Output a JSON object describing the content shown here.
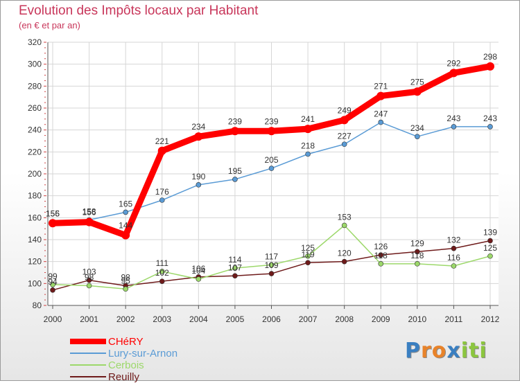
{
  "title": "Evolution des Impôts locaux par Habitant",
  "subtitle": "(en € et par an)",
  "logo": {
    "letters": [
      "P",
      "r",
      "o",
      "x",
      "i",
      "t",
      "i"
    ],
    "colors": [
      "#3a7fc1",
      "#e8832a",
      "#e8832a",
      "#3a7fc1",
      "#8cc63f",
      "#8cc63f",
      "#8cc63f"
    ]
  },
  "chart_data": {
    "type": "line",
    "title": "Evolution des Impôts locaux par Habitant",
    "subtitle": "(en € et par an)",
    "x": [
      "2000",
      "2001",
      "2002",
      "2003",
      "2004",
      "2005",
      "2006",
      "2007",
      "2008",
      "2009",
      "2010",
      "2011",
      "2012"
    ],
    "ylim": [
      80,
      320
    ],
    "yticks": [
      80,
      100,
      120,
      140,
      160,
      180,
      200,
      220,
      240,
      260,
      280,
      300,
      320
    ],
    "grid": true,
    "legend_position": "bottom-left",
    "series": [
      {
        "name": "CHéRY",
        "values": [
          155,
          156,
          144,
          221,
          234,
          239,
          239,
          241,
          249,
          271,
          275,
          292,
          298
        ],
        "color": "#ff0000"
      },
      {
        "name": "Lury-sur-Arnon",
        "values": [
          156,
          158,
          165,
          176,
          190,
          195,
          205,
          218,
          227,
          247,
          234,
          243,
          243
        ],
        "color": "#5a9bd5"
      },
      {
        "name": "Cerbois",
        "values": [
          99,
          98,
          95,
          111,
          104,
          114,
          117,
          125,
          153,
          118,
          118,
          116,
          125
        ],
        "color": "#9cd86a"
      },
      {
        "name": "Reuilly",
        "values": [
          94,
          103,
          98,
          102,
          106,
          107,
          109,
          119,
          120,
          126,
          129,
          132,
          139
        ],
        "color": "#6e1a1a"
      }
    ]
  }
}
